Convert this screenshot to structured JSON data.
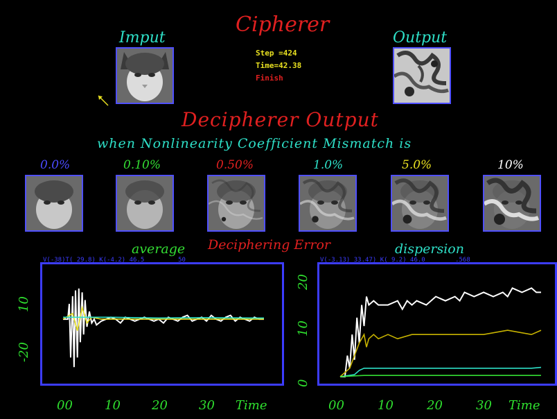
{
  "header": {
    "title": "Cipherer",
    "input_label": "Imput",
    "output_label": "Output",
    "status": {
      "step": "Step =424",
      "time": "Time=42.38",
      "finish": "Finish"
    }
  },
  "decipherer": {
    "title": "Decipherer Output",
    "subtitle": "when Nonlinearity Coefficient Mismatch is",
    "mismatches": [
      {
        "label": "0.0%",
        "color": "#4a4aff"
      },
      {
        "label": "0.10%",
        "color": "#33dd33"
      },
      {
        "label": "0.50%",
        "color": "#e02020"
      },
      {
        "label": "1.0%",
        "color": "#2ee0c8"
      },
      {
        "label": "5.0%",
        "color": "#e8e020"
      },
      {
        "label": "10%",
        "color": "#ffffff"
      }
    ]
  },
  "error_section": {
    "title": "Deciphering Error",
    "left_label": "average",
    "right_label": "dispersion",
    "left_readout": "V(-38)T( 29.8) K(-4.2) 46.5         50",
    "right_readout": "V(-3.13) 33.47) K( 9.2) 46.0        .568"
  },
  "chart_data": [
    {
      "type": "line",
      "title": "average",
      "xlabel": "Time",
      "ylabel": "",
      "x_ticks": [
        "00",
        "10",
        "20",
        "30"
      ],
      "y_ticks": [
        "-20",
        "10"
      ],
      "xlim": [
        0,
        42
      ],
      "ylim": [
        -30,
        25
      ],
      "series": [
        {
          "color": "#ffffff",
          "x": [
            0,
            0.5,
            1,
            1.3,
            1.6,
            2,
            2.3,
            2.6,
            3,
            3.3,
            3.6,
            4,
            4.3,
            4.6,
            5,
            5.5,
            6,
            6.5,
            7,
            8,
            9,
            10,
            11,
            12,
            13,
            14,
            15,
            16,
            17,
            18,
            19,
            20,
            21,
            22,
            23,
            24,
            25,
            26,
            27,
            28,
            29,
            30,
            31,
            32,
            33,
            34,
            35,
            36,
            37,
            38,
            39,
            40,
            41,
            42
          ],
          "y": [
            0,
            0,
            0,
            8,
            -20,
            12,
            -25,
            15,
            -20,
            16,
            -12,
            14,
            -8,
            10,
            -4,
            4,
            -2,
            0,
            -3,
            -1,
            0,
            1,
            0,
            -2,
            1,
            0,
            -1,
            0,
            1,
            0,
            -1,
            0,
            -2,
            1,
            0,
            -1,
            1,
            2,
            -1,
            0,
            1,
            -1,
            2,
            0,
            -1,
            1,
            2,
            -1,
            1,
            0,
            -1,
            1,
            0,
            0
          ]
        },
        {
          "color": "#e8e020",
          "x": [
            0,
            2,
            3,
            4,
            5,
            6,
            8,
            10,
            15,
            20,
            25,
            30,
            35,
            40,
            42
          ],
          "y": [
            0,
            3,
            -6,
            6,
            -2,
            1,
            0,
            0,
            0,
            0,
            0,
            0,
            0,
            0,
            0
          ]
        },
        {
          "color": "#2ee0c8",
          "x": [
            0,
            5,
            10,
            20,
            30,
            40,
            42
          ],
          "y": [
            1,
            1,
            1,
            0.6,
            0.8,
            0.6,
            0.6
          ]
        }
      ]
    },
    {
      "type": "line",
      "title": "dispersion",
      "xlabel": "Time",
      "ylabel": "",
      "x_ticks": [
        "00",
        "10",
        "20",
        "30"
      ],
      "y_ticks": [
        "0",
        "10",
        "20"
      ],
      "xlim": [
        0,
        42
      ],
      "ylim": [
        0,
        25
      ],
      "series": [
        {
          "color": "#ffffff",
          "x": [
            0,
            1,
            1.5,
            2,
            2.5,
            3,
            3.5,
            4,
            4.5,
            5,
            5.5,
            6,
            7,
            8,
            10,
            12,
            13,
            14,
            15,
            16,
            18,
            20,
            22,
            24,
            25,
            26,
            28,
            30,
            32,
            34,
            35,
            36,
            38,
            40,
            41,
            42
          ],
          "y": [
            0,
            0,
            5,
            2,
            10,
            4,
            14,
            8,
            17,
            12,
            19,
            17,
            18,
            17,
            17,
            18,
            16,
            18,
            17,
            18,
            17,
            19,
            18,
            19,
            18,
            20,
            19,
            20,
            19,
            20,
            19,
            21,
            20,
            21,
            20,
            20
          ]
        },
        {
          "color": "#c8b400",
          "x": [
            0,
            2,
            3,
            4,
            5,
            5.5,
            6,
            7,
            8,
            10,
            12,
            15,
            20,
            25,
            30,
            35,
            40,
            42
          ],
          "y": [
            0,
            2,
            5,
            8,
            10,
            7,
            9,
            10,
            9,
            10,
            9,
            10,
            10,
            10,
            10,
            11,
            10,
            11
          ]
        },
        {
          "color": "#2ee0c8",
          "x": [
            0,
            3,
            4,
            5,
            6,
            10,
            20,
            30,
            40,
            42
          ],
          "y": [
            0,
            0.5,
            1.5,
            2,
            2,
            2,
            2,
            2,
            2,
            2.2
          ]
        },
        {
          "color": "#33dd33",
          "x": [
            0,
            3,
            5,
            10,
            20,
            30,
            40,
            42
          ],
          "y": [
            0,
            0.2,
            0.3,
            0.3,
            0.3,
            0.3,
            0.3,
            0.3
          ]
        }
      ]
    }
  ]
}
